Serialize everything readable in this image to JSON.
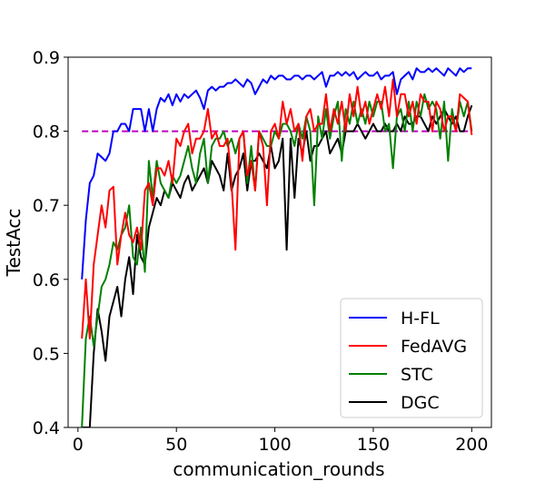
{
  "chart_data": {
    "type": "line",
    "title": "",
    "xlabel": "communication_rounds",
    "ylabel": "TestAcc",
    "xlim": [
      -5,
      210
    ],
    "ylim": [
      0.4,
      0.9
    ],
    "xticks": [
      0,
      50,
      100,
      150,
      200
    ],
    "yticks": [
      0.4,
      0.5,
      0.6,
      0.7,
      0.8,
      0.9
    ],
    "xtick_labels": [
      "0",
      "50",
      "100",
      "150",
      "200"
    ],
    "ytick_labels": [
      "0.4",
      "0.5",
      "0.6",
      "0.7",
      "0.8",
      "0.9"
    ],
    "grid": false,
    "legend_position": "lower-right",
    "reference_line": {
      "y": 0.8,
      "x_range": [
        2,
        200
      ],
      "color": "#bf00bf",
      "style": "dashed"
    },
    "x": [
      2,
      4,
      6,
      8,
      10,
      12,
      14,
      16,
      18,
      20,
      22,
      24,
      26,
      28,
      30,
      32,
      34,
      36,
      38,
      40,
      42,
      44,
      46,
      48,
      50,
      52,
      54,
      56,
      58,
      60,
      62,
      64,
      66,
      68,
      70,
      72,
      74,
      76,
      78,
      80,
      82,
      84,
      86,
      88,
      90,
      92,
      94,
      96,
      98,
      100,
      102,
      104,
      106,
      108,
      110,
      112,
      114,
      116,
      118,
      120,
      122,
      124,
      126,
      128,
      130,
      132,
      134,
      136,
      138,
      140,
      142,
      144,
      146,
      148,
      150,
      152,
      154,
      156,
      158,
      160,
      162,
      164,
      166,
      168,
      170,
      172,
      174,
      176,
      178,
      180,
      182,
      184,
      186,
      188,
      190,
      192,
      194,
      196,
      198,
      200
    ],
    "series": [
      {
        "name": "H-FL",
        "color": "#0000ff",
        "values": [
          0.6,
          0.68,
          0.73,
          0.74,
          0.77,
          0.765,
          0.76,
          0.77,
          0.8,
          0.8,
          0.81,
          0.81,
          0.8,
          0.83,
          0.83,
          0.83,
          0.8,
          0.83,
          0.8,
          0.83,
          0.845,
          0.84,
          0.85,
          0.835,
          0.85,
          0.84,
          0.85,
          0.845,
          0.85,
          0.855,
          0.845,
          0.83,
          0.855,
          0.86,
          0.855,
          0.86,
          0.86,
          0.865,
          0.865,
          0.87,
          0.865,
          0.86,
          0.87,
          0.865,
          0.85,
          0.86,
          0.87,
          0.865,
          0.875,
          0.87,
          0.875,
          0.875,
          0.87,
          0.87,
          0.875,
          0.875,
          0.87,
          0.875,
          0.875,
          0.87,
          0.875,
          0.88,
          0.86,
          0.875,
          0.875,
          0.88,
          0.875,
          0.88,
          0.875,
          0.88,
          0.87,
          0.875,
          0.88,
          0.875,
          0.875,
          0.88,
          0.87,
          0.875,
          0.875,
          0.88,
          0.85,
          0.87,
          0.875,
          0.88,
          0.87,
          0.885,
          0.88,
          0.88,
          0.885,
          0.88,
          0.885,
          0.88,
          0.875,
          0.885,
          0.88,
          0.875,
          0.885,
          0.88,
          0.885,
          0.885
        ]
      },
      {
        "name": "FedAVG",
        "color": "#ff0000",
        "values": [
          0.52,
          0.6,
          0.52,
          0.62,
          0.66,
          0.7,
          0.67,
          0.72,
          0.725,
          0.62,
          0.66,
          0.69,
          0.66,
          0.65,
          0.67,
          0.64,
          0.72,
          0.73,
          0.7,
          0.75,
          0.75,
          0.74,
          0.76,
          0.73,
          0.79,
          0.78,
          0.8,
          0.81,
          0.77,
          0.79,
          0.79,
          0.8,
          0.83,
          0.79,
          0.8,
          0.78,
          0.78,
          0.79,
          0.73,
          0.64,
          0.79,
          0.8,
          0.74,
          0.76,
          0.72,
          0.8,
          0.78,
          0.7,
          0.8,
          0.81,
          0.79,
          0.84,
          0.81,
          0.83,
          0.8,
          0.81,
          0.76,
          0.82,
          0.83,
          0.8,
          0.81,
          0.81,
          0.85,
          0.8,
          0.83,
          0.81,
          0.84,
          0.8,
          0.85,
          0.82,
          0.86,
          0.82,
          0.84,
          0.81,
          0.83,
          0.85,
          0.83,
          0.86,
          0.82,
          0.87,
          0.82,
          0.85,
          0.85,
          0.82,
          0.84,
          0.81,
          0.85,
          0.84,
          0.84,
          0.8,
          0.84,
          0.83,
          0.8,
          0.82,
          0.82,
          0.8,
          0.85,
          0.845,
          0.84,
          0.795
        ]
      },
      {
        "name": "STC",
        "color": "#008000",
        "values": [
          0.4,
          0.52,
          0.55,
          0.51,
          0.55,
          0.59,
          0.6,
          0.62,
          0.65,
          0.64,
          0.66,
          0.67,
          0.7,
          0.63,
          0.62,
          0.67,
          0.61,
          0.76,
          0.71,
          0.76,
          0.73,
          0.72,
          0.71,
          0.74,
          0.73,
          0.74,
          0.76,
          0.78,
          0.75,
          0.73,
          0.77,
          0.79,
          0.73,
          0.78,
          0.79,
          0.79,
          0.8,
          0.78,
          0.79,
          0.77,
          0.79,
          0.8,
          0.73,
          0.78,
          0.72,
          0.8,
          0.79,
          0.78,
          0.78,
          0.8,
          0.79,
          0.81,
          0.81,
          0.8,
          0.78,
          0.81,
          0.79,
          0.82,
          0.8,
          0.7,
          0.82,
          0.79,
          0.83,
          0.79,
          0.82,
          0.84,
          0.76,
          0.83,
          0.81,
          0.84,
          0.81,
          0.83,
          0.81,
          0.84,
          0.82,
          0.84,
          0.84,
          0.8,
          0.81,
          0.75,
          0.82,
          0.83,
          0.8,
          0.84,
          0.8,
          0.84,
          0.82,
          0.85,
          0.83,
          0.84,
          0.83,
          0.79,
          0.84,
          0.76,
          0.83,
          0.8,
          0.84,
          0.82,
          0.84,
          0.8
        ]
      },
      {
        "name": "DGC",
        "color": "#000000",
        "values": [
          0.4,
          0.4,
          0.4,
          0.5,
          0.56,
          0.53,
          0.49,
          0.55,
          0.57,
          0.59,
          0.55,
          0.6,
          0.63,
          0.58,
          0.66,
          0.63,
          0.62,
          0.67,
          0.69,
          0.71,
          0.7,
          0.72,
          0.71,
          0.73,
          0.72,
          0.71,
          0.73,
          0.74,
          0.72,
          0.73,
          0.74,
          0.75,
          0.73,
          0.76,
          0.75,
          0.74,
          0.72,
          0.77,
          0.72,
          0.74,
          0.75,
          0.77,
          0.72,
          0.76,
          0.76,
          0.77,
          0.76,
          0.75,
          0.78,
          0.75,
          0.76,
          0.79,
          0.64,
          0.79,
          0.71,
          0.79,
          0.77,
          0.8,
          0.76,
          0.78,
          0.78,
          0.79,
          0.8,
          0.77,
          0.78,
          0.79,
          0.77,
          0.8,
          0.8,
          0.8,
          0.81,
          0.8,
          0.79,
          0.8,
          0.81,
          0.8,
          0.8,
          0.81,
          0.8,
          0.8,
          0.81,
          0.8,
          0.82,
          0.81,
          0.81,
          0.82,
          0.82,
          0.81,
          0.8,
          0.82,
          0.81,
          0.82,
          0.83,
          0.82,
          0.81,
          0.82,
          0.8,
          0.8,
          0.82,
          0.835
        ]
      }
    ]
  }
}
